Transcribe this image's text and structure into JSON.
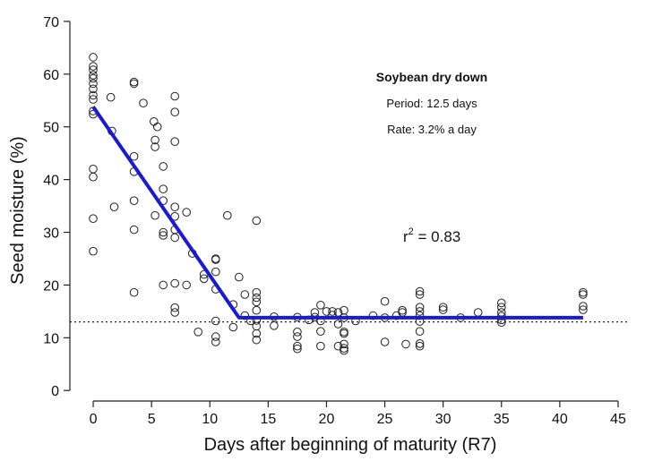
{
  "chart_data": {
    "type": "scatter",
    "title": "Soybean dry down",
    "xlabel": "Days after beginning of maturity (R7)",
    "ylabel": "Seed moisture (%)",
    "xlim": [
      -2,
      46
    ],
    "ylim": [
      -2,
      71
    ],
    "xticks": [
      0,
      5,
      10,
      15,
      20,
      25,
      30,
      35,
      40,
      45
    ],
    "yticks": [
      0,
      10,
      20,
      30,
      40,
      50,
      60,
      70
    ],
    "grid": false,
    "legend": "none",
    "annotations": {
      "period": "Period: 12.5 days",
      "rate": "Rate: 3.2% a day",
      "r2_prefix": "r",
      "r2_sup": "2",
      "r2_value": " = 0.83"
    },
    "fit_line": {
      "color": "#1a1ad6",
      "points": [
        [
          0,
          53.8
        ],
        [
          12.5,
          13.8
        ],
        [
          42,
          13.8
        ]
      ]
    },
    "reference_line": {
      "y": 13,
      "style": "dotted"
    },
    "points": [
      [
        0,
        63.2
      ],
      [
        0,
        61.5
      ],
      [
        0,
        60.8
      ],
      [
        0,
        59.8
      ],
      [
        0,
        59.2
      ],
      [
        0,
        58.2
      ],
      [
        0,
        57.2
      ],
      [
        0,
        56.0
      ],
      [
        0,
        55.2
      ],
      [
        0,
        53.0
      ],
      [
        0,
        52.4
      ],
      [
        0,
        42.0
      ],
      [
        0,
        40.5
      ],
      [
        0,
        32.6
      ],
      [
        0,
        26.4
      ],
      [
        1.5,
        55.6
      ],
      [
        1.6,
        49.2
      ],
      [
        1.8,
        34.8
      ],
      [
        3.5,
        58.5
      ],
      [
        3.5,
        58.2
      ],
      [
        3.5,
        44.4
      ],
      [
        3.5,
        41.5
      ],
      [
        3.5,
        36.0
      ],
      [
        3.5,
        30.5
      ],
      [
        3.5,
        18.6
      ],
      [
        4.3,
        54.5
      ],
      [
        5.2,
        51.0
      ],
      [
        5.3,
        47.5
      ],
      [
        5.3,
        46.2
      ],
      [
        5.5,
        50.0
      ],
      [
        5.3,
        33.2
      ],
      [
        6.0,
        42.5
      ],
      [
        6.0,
        38.2
      ],
      [
        6.0,
        36.0
      ],
      [
        6.0,
        30.0
      ],
      [
        6.0,
        29.4
      ],
      [
        6.0,
        20.0
      ],
      [
        7.0,
        55.8
      ],
      [
        7.0,
        52.8
      ],
      [
        7.0,
        47.2
      ],
      [
        7.0,
        34.8
      ],
      [
        7.0,
        33.0
      ],
      [
        7.0,
        30.5
      ],
      [
        7.0,
        29.0
      ],
      [
        7.0,
        20.3
      ],
      [
        7.0,
        15.7
      ],
      [
        7.0,
        14.8
      ],
      [
        8.0,
        33.8
      ],
      [
        8.0,
        20.0
      ],
      [
        8.5,
        26.0
      ],
      [
        9.0,
        11.1
      ],
      [
        9.5,
        22.0
      ],
      [
        9.5,
        21.2
      ],
      [
        10.5,
        25.0
      ],
      [
        10.5,
        24.8
      ],
      [
        10.5,
        22.5
      ],
      [
        10.5,
        19.2
      ],
      [
        10.5,
        13.2
      ],
      [
        10.5,
        10.2
      ],
      [
        10.5,
        9.2
      ],
      [
        11.5,
        33.2
      ],
      [
        12.0,
        16.3
      ],
      [
        12.0,
        12.0
      ],
      [
        12.5,
        21.5
      ],
      [
        13.0,
        18.2
      ],
      [
        13.0,
        14.2
      ],
      [
        13.5,
        13.2
      ],
      [
        14.0,
        32.2
      ],
      [
        14.0,
        18.6
      ],
      [
        14.0,
        17.6
      ],
      [
        14.0,
        16.8
      ],
      [
        14.0,
        15.2
      ],
      [
        14.0,
        13.3
      ],
      [
        14.0,
        12.2
      ],
      [
        14.0,
        10.8
      ],
      [
        14.0,
        9.6
      ],
      [
        15.5,
        14.0
      ],
      [
        15.5,
        12.3
      ],
      [
        17.5,
        13.9
      ],
      [
        17.5,
        11.1
      ],
      [
        17.5,
        10.2
      ],
      [
        17.5,
        8.4
      ],
      [
        17.5,
        7.9
      ],
      [
        18.5,
        13.4
      ],
      [
        19.0,
        14.8
      ],
      [
        19.0,
        13.9
      ],
      [
        19.5,
        16.2
      ],
      [
        19.5,
        13.2
      ],
      [
        19.5,
        11.2
      ],
      [
        19.5,
        8.4
      ],
      [
        20.0,
        15.0
      ],
      [
        20.5,
        15.0
      ],
      [
        20.5,
        14.3
      ],
      [
        21.0,
        14.8
      ],
      [
        21.0,
        12.6
      ],
      [
        21.0,
        8.4
      ],
      [
        21.5,
        15.2
      ],
      [
        21.5,
        13.8
      ],
      [
        21.5,
        11.1
      ],
      [
        21.5,
        10.8
      ],
      [
        21.5,
        8.8
      ],
      [
        21.5,
        8.0
      ],
      [
        21.5,
        7.6
      ],
      [
        22.5,
        13.2
      ],
      [
        24.0,
        14.2
      ],
      [
        25.0,
        16.9
      ],
      [
        25.0,
        13.8
      ],
      [
        25.0,
        9.2
      ],
      [
        26.0,
        14.2
      ],
      [
        26.5,
        15.2
      ],
      [
        26.5,
        14.8
      ],
      [
        26.8,
        8.8
      ],
      [
        28.0,
        18.8
      ],
      [
        28.0,
        18.2
      ],
      [
        28.0,
        15.8
      ],
      [
        28.0,
        15.0
      ],
      [
        28.0,
        14.2
      ],
      [
        28.0,
        13.1
      ],
      [
        28.0,
        11.2
      ],
      [
        28.0,
        8.9
      ],
      [
        28.0,
        8.4
      ],
      [
        30.0,
        15.8
      ],
      [
        30.0,
        15.3
      ],
      [
        31.5,
        13.8
      ],
      [
        33.0,
        14.8
      ],
      [
        35.0,
        16.6
      ],
      [
        35.0,
        15.8
      ],
      [
        35.0,
        14.8
      ],
      [
        35.0,
        14.1
      ],
      [
        35.0,
        13.4
      ],
      [
        35.0,
        12.9
      ],
      [
        42.0,
        18.6
      ],
      [
        42.0,
        18.2
      ],
      [
        42.0,
        16.0
      ],
      [
        42.0,
        15.3
      ]
    ]
  }
}
